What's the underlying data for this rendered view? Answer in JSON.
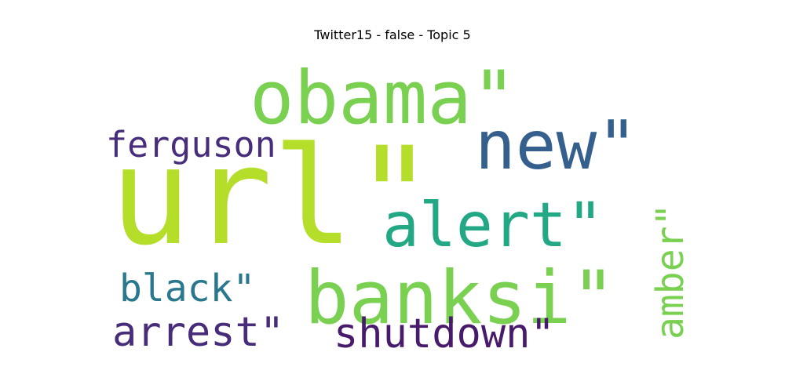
{
  "chart_data": {
    "type": "wordcloud",
    "title": "Twitter15 - false - Topic 5",
    "words": [
      {
        "text": "url\"",
        "weight": 1.0,
        "color": "#b5de2b"
      },
      {
        "text": "obama\"",
        "weight": 0.55,
        "color": "#7ad151"
      },
      {
        "text": "new\"",
        "weight": 0.5,
        "color": "#355f8d"
      },
      {
        "text": "banksi\"",
        "weight": 0.55,
        "color": "#7ad151"
      },
      {
        "text": "alert\"",
        "weight": 0.46,
        "color": "#22a884"
      },
      {
        "text": "shutdown\"",
        "weight": 0.31,
        "color": "#481a6c"
      },
      {
        "text": "arrest\"",
        "weight": 0.31,
        "color": "#472c7a"
      },
      {
        "text": "ferguson",
        "weight": 0.26,
        "color": "#472d7b"
      },
      {
        "text": "black\"",
        "weight": 0.28,
        "color": "#2a788e"
      },
      {
        "text": "amber\"",
        "weight": 0.28,
        "color": "#7ad151"
      }
    ]
  }
}
